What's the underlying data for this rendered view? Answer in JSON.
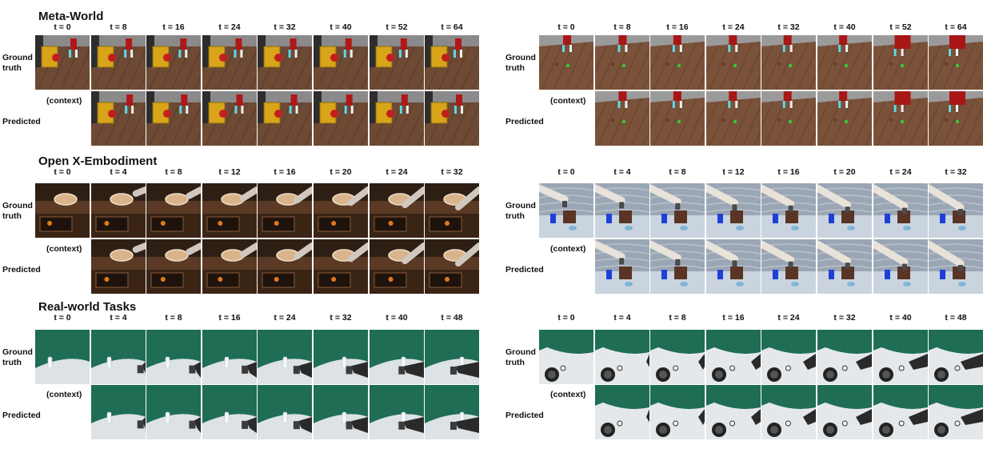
{
  "sections": [
    {
      "title": "Meta-World",
      "labels": {
        "ground_truth": [
          "Ground",
          "truth"
        ],
        "predicted": "Predicted",
        "context": "(context)"
      },
      "panels": [
        {
          "time_labels": [
            "t = 0",
            "t = 8",
            "t = 16",
            "t = 24",
            "t = 32",
            "t = 40",
            "t = 52",
            "t = 64"
          ]
        },
        {
          "time_labels": [
            "t = 0",
            "t = 8",
            "t = 16",
            "t = 24",
            "t = 32",
            "t = 40",
            "t = 52",
            "t = 64"
          ]
        }
      ]
    },
    {
      "title": "Open X-Embodiment",
      "labels": {
        "ground_truth": [
          "Ground",
          "truth"
        ],
        "predicted": "Predicted",
        "context": "(context)"
      },
      "panels": [
        {
          "time_labels": [
            "t = 0",
            "t = 4",
            "t = 8",
            "t = 12",
            "t = 16",
            "t = 20",
            "t = 24",
            "t = 32"
          ]
        },
        {
          "time_labels": [
            "t = 0",
            "t = 4",
            "t = 8",
            "t = 12",
            "t = 16",
            "t = 20",
            "t = 24",
            "t = 32"
          ]
        }
      ]
    },
    {
      "title": "Real-world Tasks",
      "labels": {
        "ground_truth": [
          "Ground",
          "truth"
        ],
        "predicted": "Predicted",
        "context": "(context)"
      },
      "panels": [
        {
          "time_labels": [
            "t = 0",
            "t = 4",
            "t = 8",
            "t = 16",
            "t = 24",
            "t = 32",
            "t = 40",
            "t = 48"
          ]
        },
        {
          "time_labels": [
            "t = 0",
            "t = 4",
            "t = 8",
            "t = 16",
            "t = 24",
            "t = 32",
            "t = 40",
            "t = 48"
          ]
        }
      ]
    }
  ]
}
